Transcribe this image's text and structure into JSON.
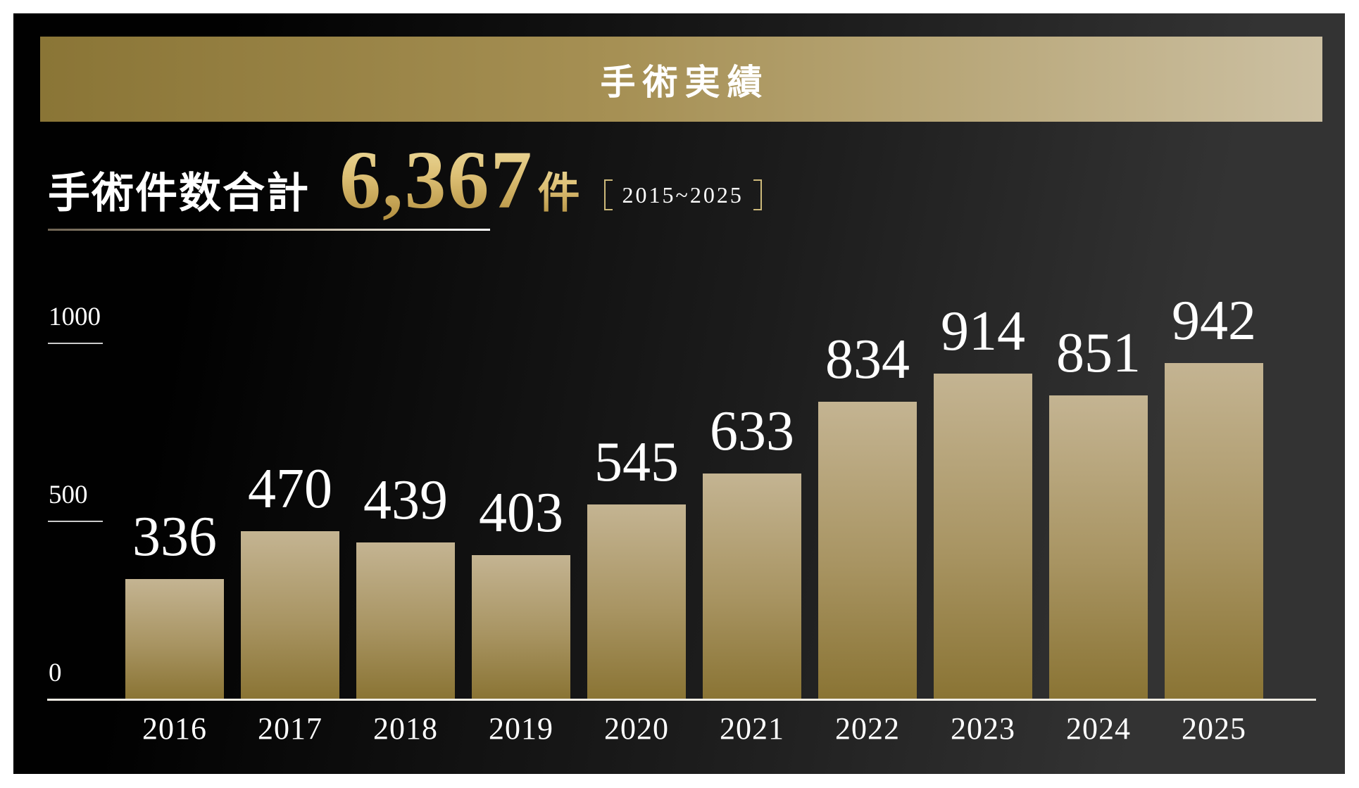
{
  "header": {
    "title": "手術実績"
  },
  "summary": {
    "label": "手術件数合計",
    "total_value": "6,367",
    "total_unit": "件",
    "period": "2015~2025"
  },
  "chart_data": {
    "type": "bar",
    "title": "手術実績",
    "subtitle": "手術件数合計 6,367件 [2015~2025]",
    "categories": [
      "2016",
      "2017",
      "2018",
      "2019",
      "2020",
      "2021",
      "2022",
      "2023",
      "2024",
      "2025"
    ],
    "values": [
      336,
      470,
      439,
      403,
      545,
      633,
      834,
      914,
      851,
      942
    ],
    "xlabel": "",
    "ylabel": "",
    "ylim": [
      0,
      1000
    ],
    "yticks": [
      0,
      500,
      1000
    ],
    "grid": false,
    "legend": "none",
    "value_labels_shown": true
  },
  "colors": {
    "page_background": "#ffffff",
    "panel_background_start": "#010101",
    "panel_background_end": "#333333",
    "header_gold_start": "#8a7536",
    "header_gold_end": "#ccc0a2",
    "bar_gradient_top": "#c4b492",
    "bar_gradient_bottom": "#8a7434",
    "gold_text": "#dcbf74",
    "bracket_gold": "#cdb97a",
    "text_white": "#ffffff",
    "axis_line": "#efece4"
  }
}
